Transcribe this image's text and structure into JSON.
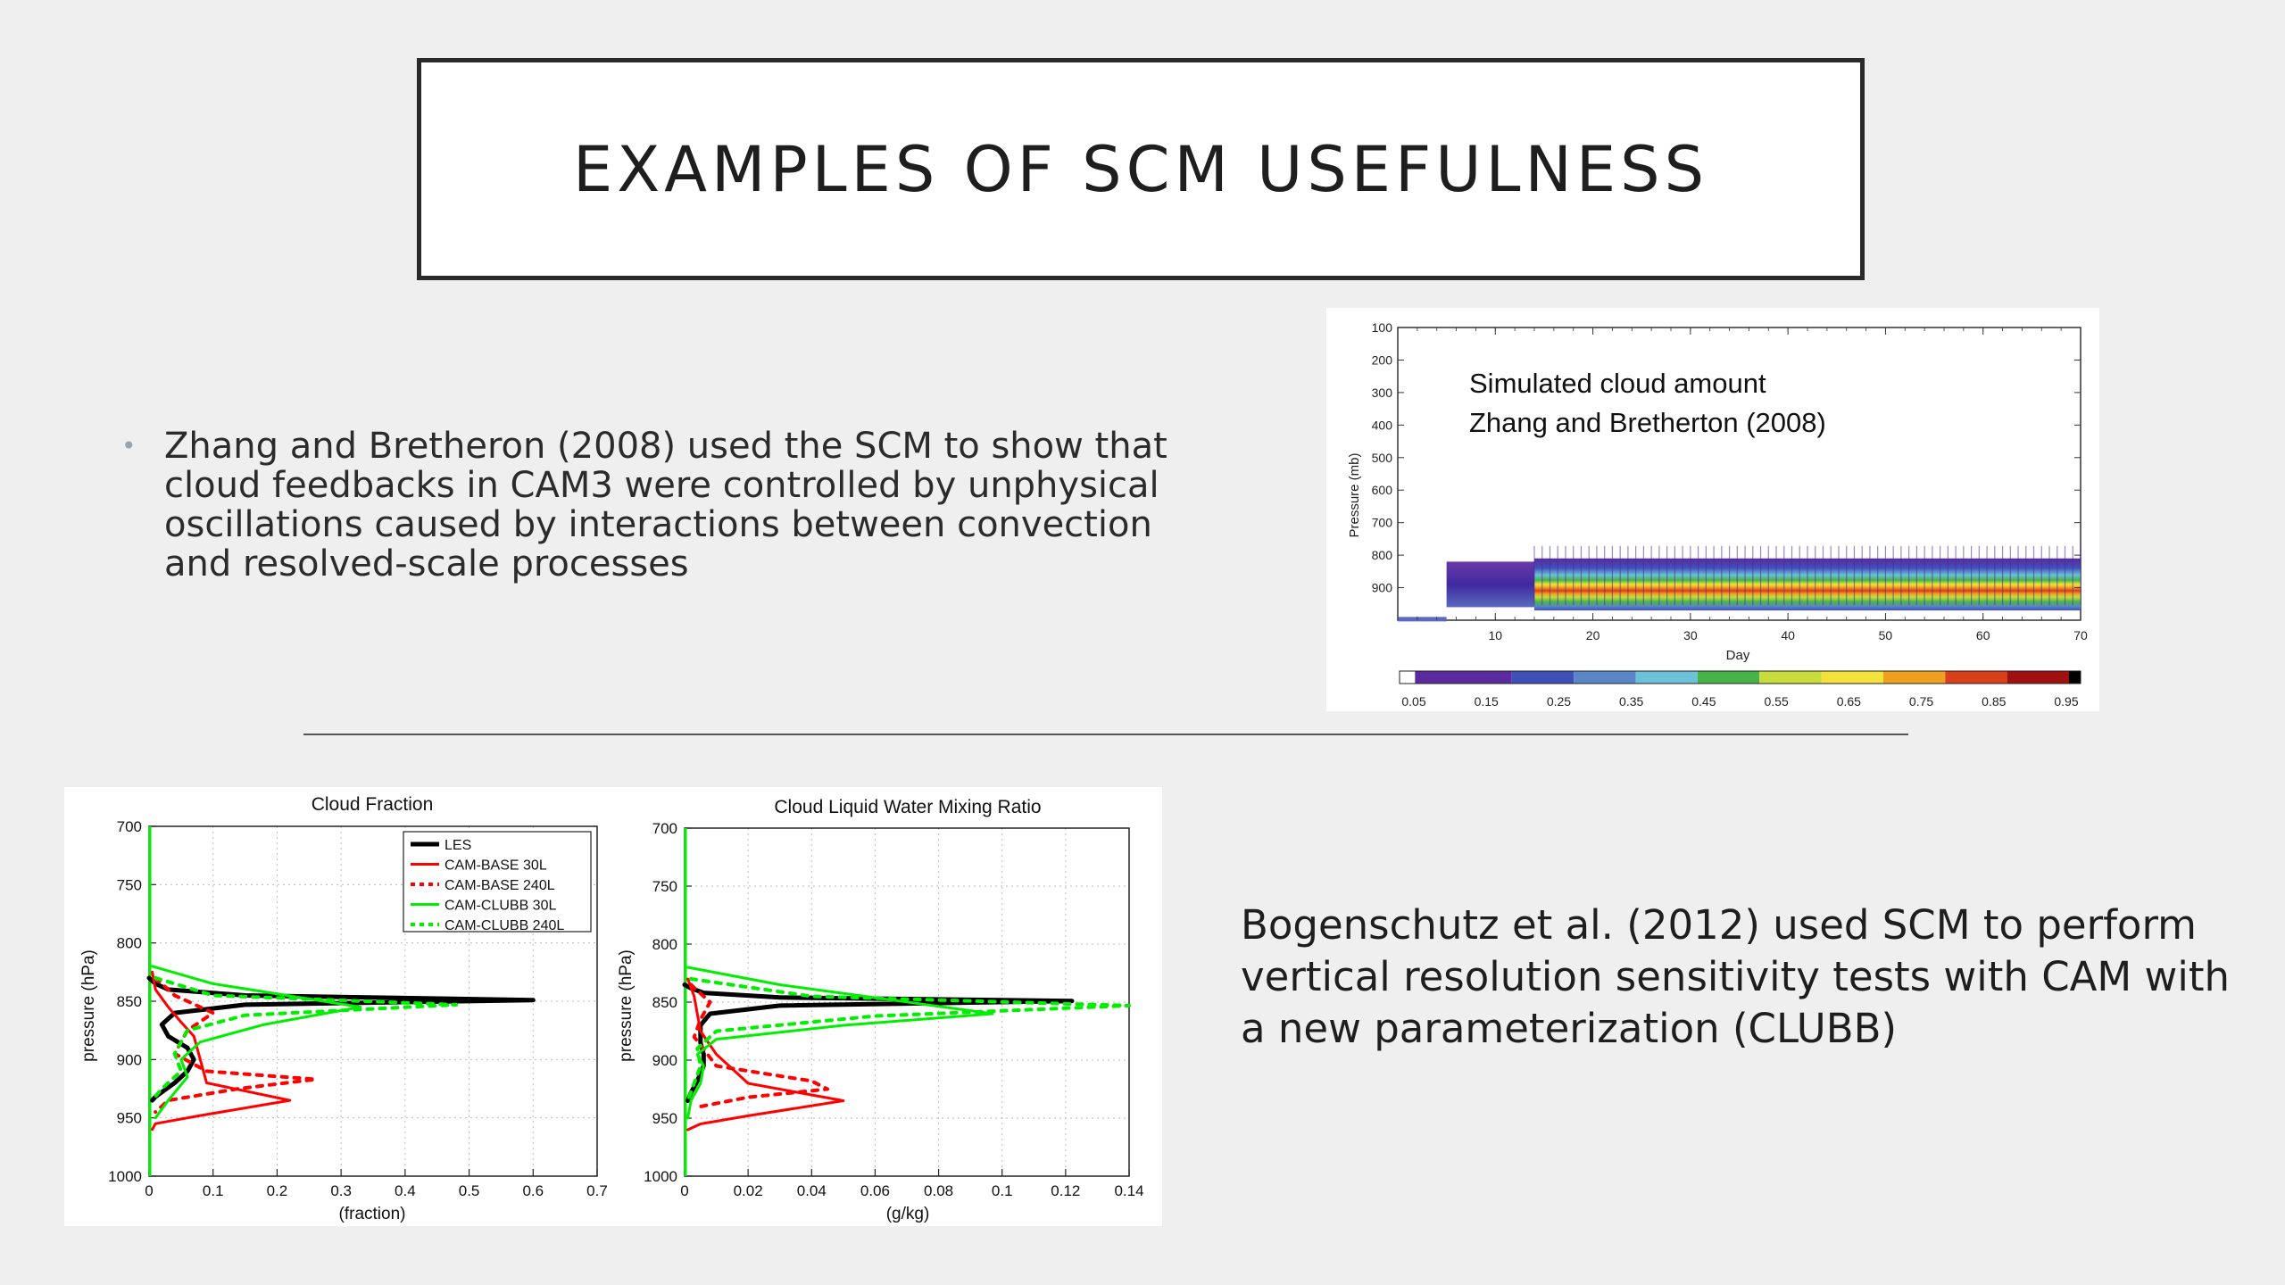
{
  "slide": {
    "title": "EXAMPLES OF SCM USEFULNESS",
    "bullet": "Zhang and Bretheron (2008) used the SCM to show that cloud feedbacks in CAM3 were controlled by unphysical oscillations caused by interactions between convection and resolved-scale processes",
    "paragraph2": "Bogenschutz et al. (2012) used SCM to perform vertical resolution sensitivity tests with CAM with a new parameterization (CLUBB)"
  },
  "chart_data": [
    {
      "type": "heatmap",
      "title": "",
      "annotation_lines": [
        "Simulated cloud amount",
        "Zhang and Bretherton (2008)"
      ],
      "xlabel": "Day",
      "ylabel": "Pressure (mb)",
      "xlim": [
        0,
        70
      ],
      "ylim": [
        1000,
        100
      ],
      "x_ticks": [
        "10",
        "20",
        "30",
        "40",
        "50",
        "60",
        "70"
      ],
      "y_ticks": [
        "100",
        "200",
        "300",
        "400",
        "500",
        "600",
        "700",
        "800",
        "900"
      ],
      "colorbar_ticks": [
        "0.05",
        "0.15",
        "0.25",
        "0.35",
        "0.45",
        "0.55",
        "0.65",
        "0.75",
        "0.85",
        "0.95"
      ],
      "colorbar_colors": [
        "#ffffff",
        "#5b2a9e",
        "#3f4fb8",
        "#5a86c8",
        "#6cc0d8",
        "#46b34a",
        "#c8dc3c",
        "#f3e23a",
        "#f0a020",
        "#d8401a",
        "#a01010",
        "#000000"
      ],
      "cloud_layer": {
        "day_start": 14,
        "day_end": 70,
        "pressure_top": 810,
        "pressure_bottom": 970,
        "peak_pressure": 880,
        "peak_value": 0.85
      },
      "cloud_early": {
        "day_start": 5,
        "day_end": 14,
        "pressure_top": 820,
        "pressure_bottom": 960,
        "value": 0.1
      }
    },
    {
      "type": "line",
      "title": "Cloud Fraction",
      "xlabel": "(fraction)",
      "ylabel": "pressure (hPa)",
      "xlim": [
        0,
        0.7
      ],
      "ylim": [
        1000,
        700
      ],
      "x_ticks": [
        "0",
        "0.1",
        "0.2",
        "0.3",
        "0.4",
        "0.5",
        "0.6",
        "0.7"
      ],
      "y_ticks": [
        "700",
        "750",
        "800",
        "850",
        "900",
        "950",
        "1000"
      ],
      "legend_position": "top-right",
      "series": [
        {
          "name": "LES",
          "color": "#000000",
          "dash": "solid",
          "width": 5,
          "x": [
            0,
            0.01,
            0.03,
            0.15,
            0.6,
            0.15,
            0.04,
            0.02,
            0.03,
            0.06,
            0.07,
            0.06,
            0.04,
            0.02,
            0.01,
            0.005
          ],
          "y": [
            830,
            835,
            840,
            845,
            849,
            853,
            860,
            870,
            880,
            890,
            900,
            910,
            920,
            928,
            932,
            935
          ]
        },
        {
          "name": "CAM-BASE 30L",
          "color": "#ff0000",
          "dash": "solid",
          "width": 3,
          "x": [
            0.005,
            0.01,
            0.03,
            0.05,
            0.07,
            0.09,
            0.22,
            0.08,
            0.01,
            0.005
          ],
          "y": [
            825,
            840,
            855,
            868,
            880,
            920,
            935,
            948,
            955,
            960
          ]
        },
        {
          "name": "CAM-BASE 240L",
          "color": "#ff0000",
          "dash": "dash",
          "width": 4,
          "x": [
            0.01,
            0.04,
            0.1,
            0.06,
            0.04,
            0.09,
            0.26,
            0.14,
            0.03,
            0.01
          ],
          "y": [
            830,
            845,
            860,
            875,
            895,
            910,
            917,
            925,
            935,
            945
          ]
        },
        {
          "name": "CAM-CLUBB 30L",
          "color": "#00ee00",
          "dash": "solid",
          "width": 3,
          "x": [
            0.005,
            0.1,
            0.33,
            0.18,
            0.08,
            0.05,
            0.06,
            0.03,
            0.01
          ],
          "y": [
            820,
            835,
            855,
            870,
            885,
            900,
            915,
            935,
            950
          ]
        },
        {
          "name": "CAM-CLUBB 240L",
          "color": "#00ee00",
          "dash": "dash",
          "width": 4,
          "x": [
            0.01,
            0.1,
            0.48,
            0.15,
            0.06,
            0.04,
            0.05,
            0.02,
            0.005
          ],
          "y": [
            830,
            845,
            853,
            862,
            875,
            895,
            910,
            925,
            935
          ]
        }
      ]
    },
    {
      "type": "line",
      "title": "Cloud Liquid Water Mixing Ratio",
      "xlabel": "(g/kg)",
      "ylabel": "pressure (hPa)",
      "xlim": [
        0,
        0.14
      ],
      "ylim": [
        1000,
        700
      ],
      "x_ticks": [
        "0",
        "0.02",
        "0.04",
        "0.06",
        "0.08",
        "0.1",
        "0.12",
        "0.14"
      ],
      "y_ticks": [
        "700",
        "750",
        "800",
        "850",
        "900",
        "950",
        "1000"
      ],
      "series": [
        {
          "name": "LES",
          "color": "#000000",
          "dash": "solid",
          "width": 5,
          "x": [
            0,
            0.002,
            0.006,
            0.03,
            0.122,
            0.03,
            0.008,
            0.005,
            0.005,
            0.006,
            0.006,
            0.004,
            0.002,
            0.001
          ],
          "y": [
            835,
            838,
            842,
            846,
            849,
            853,
            860,
            870,
            885,
            895,
            905,
            918,
            928,
            935
          ]
        },
        {
          "name": "CAM-BASE 30L",
          "color": "#ff0000",
          "dash": "solid",
          "width": 3,
          "x": [
            0.001,
            0.003,
            0.004,
            0.005,
            0.01,
            0.02,
            0.05,
            0.02,
            0.005,
            0.001
          ],
          "y": [
            830,
            845,
            860,
            875,
            895,
            920,
            935,
            948,
            955,
            960
          ]
        },
        {
          "name": "CAM-BASE 240L",
          "color": "#ff0000",
          "dash": "dash",
          "width": 4,
          "x": [
            0.002,
            0.008,
            0.005,
            0.003,
            0.01,
            0.04,
            0.045,
            0.02,
            0.005
          ],
          "y": [
            835,
            850,
            865,
            880,
            905,
            918,
            925,
            932,
            940
          ]
        },
        {
          "name": "CAM-CLUBB 30L",
          "color": "#00ee00",
          "dash": "solid",
          "width": 3,
          "x": [
            0.001,
            0.03,
            0.097,
            0.05,
            0.01,
            0.004,
            0.006,
            0.005,
            0.002,
            0.001
          ],
          "y": [
            820,
            835,
            860,
            870,
            882,
            895,
            905,
            920,
            935,
            950
          ]
        },
        {
          "name": "CAM-CLUBB 240L",
          "color": "#00ee00",
          "dash": "dash",
          "width": 4,
          "x": [
            0.002,
            0.04,
            0.14,
            0.06,
            0.01,
            0.004,
            0.005,
            0.003,
            0.001
          ],
          "y": [
            830,
            845,
            853,
            862,
            875,
            890,
            905,
            920,
            935
          ]
        }
      ]
    }
  ]
}
